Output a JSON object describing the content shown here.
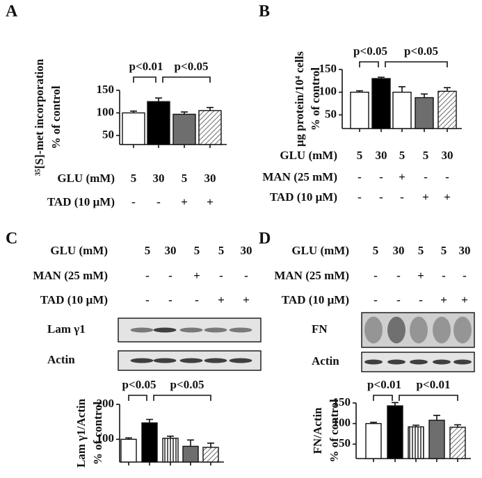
{
  "chart_data": [
    {
      "type": "bar",
      "panel": "A",
      "ylabel": [
        "³⁵[S]-met incorporation",
        "% of control"
      ],
      "values": [
        100,
        125,
        97,
        105
      ],
      "errors": [
        4,
        8,
        5,
        7
      ],
      "fills": [
        "#ffffff",
        "#000000",
        "#6e6e6e",
        "hatch"
      ],
      "ylim": [
        30,
        150
      ],
      "yticks": [
        50,
        100,
        150
      ],
      "significance": [
        "p<0.01",
        "p<0.05"
      ],
      "conditions": [
        {
          "label": "GLU (mM)",
          "values": [
            "5",
            "30",
            "5",
            "30"
          ]
        },
        {
          "label": "TAD (10 μM)",
          "values": [
            "-",
            "-",
            "+",
            "+"
          ]
        }
      ]
    },
    {
      "type": "bar",
      "panel": "B",
      "ylabel": [
        "μg protein/10⁴ cells",
        "% of control"
      ],
      "values": [
        100,
        130,
        100,
        88,
        102
      ],
      "errors": [
        3,
        3,
        12,
        8,
        8
      ],
      "fills": [
        "#ffffff",
        "#000000",
        "#ffffff",
        "#6e6e6e",
        "hatch"
      ],
      "ylim": [
        20,
        150
      ],
      "yticks": [
        50,
        100,
        150
      ],
      "significance": [
        "p<0.05",
        "p<0.05"
      ],
      "conditions": [
        {
          "label": "GLU (mM)",
          "values": [
            "5",
            "30",
            "5",
            "5",
            "30"
          ]
        },
        {
          "label": "MAN (25 mM)",
          "values": [
            "-",
            "-",
            "+",
            "-",
            "-"
          ]
        },
        {
          "label": "TAD (10 μM)",
          "values": [
            "-",
            "-",
            "-",
            "+",
            "+"
          ]
        }
      ]
    },
    {
      "type": "bar",
      "panel": "C",
      "ylabel": [
        "Lam γ1/Actin",
        "% of control"
      ],
      "values": [
        100,
        147,
        103,
        80,
        77
      ],
      "errors": [
        4,
        10,
        6,
        18,
        12
      ],
      "fills": [
        "#ffffff",
        "#000000",
        "stripes",
        "#6e6e6e",
        "hatch"
      ],
      "ylim": [
        35,
        200
      ],
      "yticks": [
        100,
        200
      ],
      "significance": [
        "p<0.05",
        "p<0.05"
      ],
      "blots": [
        "Lam γ1",
        "Actin"
      ],
      "conditions": [
        {
          "label": "GLU (mM)",
          "values": [
            "5",
            "30",
            "5",
            "5",
            "30"
          ]
        },
        {
          "label": "MAN (25 mM)",
          "values": [
            "-",
            "-",
            "+",
            "-",
            "-"
          ]
        },
        {
          "label": "TAD (10 μM)",
          "values": [
            "-",
            "-",
            "-",
            "+",
            "+"
          ]
        }
      ]
    },
    {
      "type": "bar",
      "panel": "D",
      "ylabel": [
        "FN/Actin",
        "% of control"
      ],
      "values": [
        100,
        143,
        92,
        108,
        91
      ],
      "errors": [
        3,
        8,
        4,
        12,
        6
      ],
      "fills": [
        "#ffffff",
        "#000000",
        "stripes",
        "#6e6e6e",
        "hatch"
      ],
      "ylim": [
        15,
        150
      ],
      "yticks": [
        50,
        100,
        150
      ],
      "significance": [
        "p<0.01",
        "p<0.01"
      ],
      "blots": [
        "FN",
        "Actin"
      ],
      "conditions": [
        {
          "label": "GLU (mM)",
          "values": [
            "5",
            "30",
            "5",
            "5",
            "30"
          ]
        },
        {
          "label": "MAN (25 mM)",
          "values": [
            "-",
            "-",
            "+",
            "-",
            "-"
          ]
        },
        {
          "label": "TAD (10 μM)",
          "values": [
            "-",
            "-",
            "-",
            "+",
            "+"
          ]
        }
      ]
    }
  ]
}
